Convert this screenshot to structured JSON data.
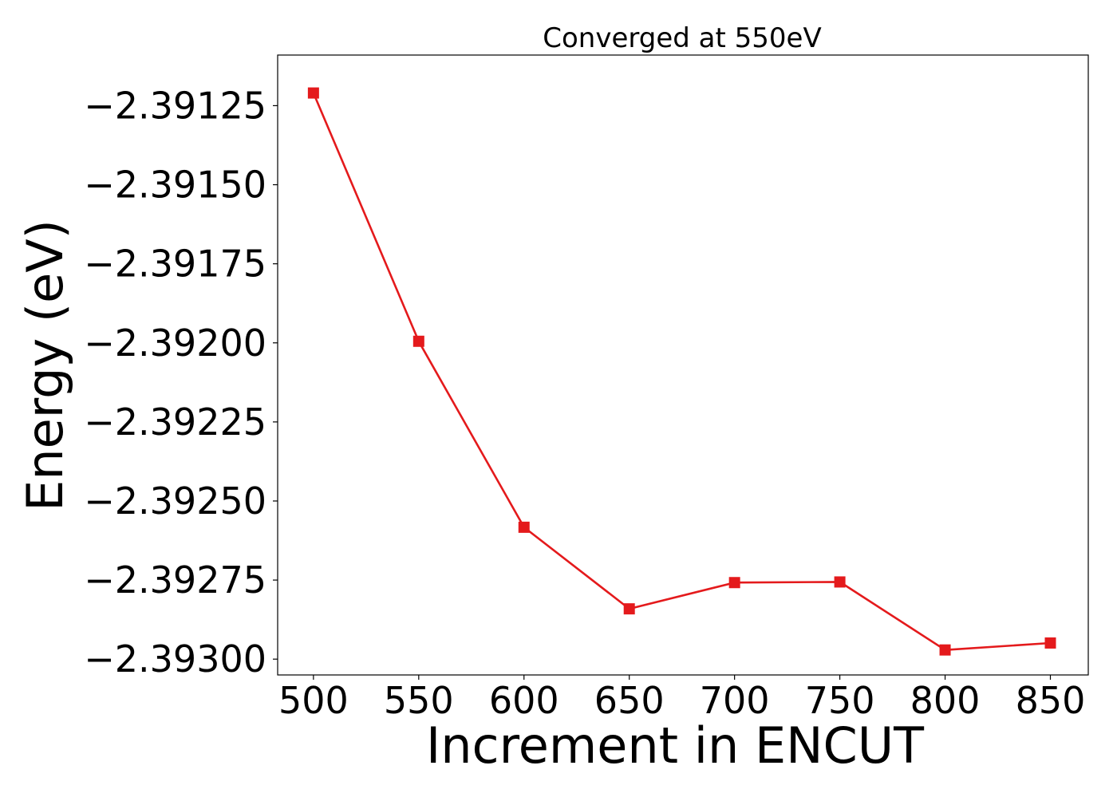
{
  "chart_data": {
    "type": "line",
    "title": "Converged at 550eV",
    "xlabel": "Increment in ENCUT",
    "ylabel": "Energy (eV)",
    "x": [
      500,
      550,
      600,
      650,
      700,
      750,
      800,
      850
    ],
    "series": [
      {
        "values": [
          -2.39121,
          -2.391995,
          -2.392583,
          -2.392841,
          -2.392758,
          -2.392756,
          -2.392971,
          -2.392949
        ],
        "color": "#e41a1c",
        "marker": "square"
      }
    ],
    "xlim": [
      483,
      868
    ],
    "ylim": [
      -2.39305,
      -2.39109
    ],
    "xticks": [
      500,
      550,
      600,
      650,
      700,
      750,
      800,
      850
    ],
    "xtick_labels": [
      "500",
      "550",
      "600",
      "650",
      "700",
      "750",
      "800",
      "850"
    ],
    "yticks": [
      -2.39125,
      -2.3915,
      -2.39175,
      -2.392,
      -2.39225,
      -2.3925,
      -2.39275,
      -2.393
    ],
    "ytick_labels": [
      "−2.39125",
      "−2.39150",
      "−2.39175",
      "−2.39200",
      "−2.39225",
      "−2.39250",
      "−2.39275",
      "−2.39300"
    ],
    "grid": false,
    "legend": "none"
  }
}
